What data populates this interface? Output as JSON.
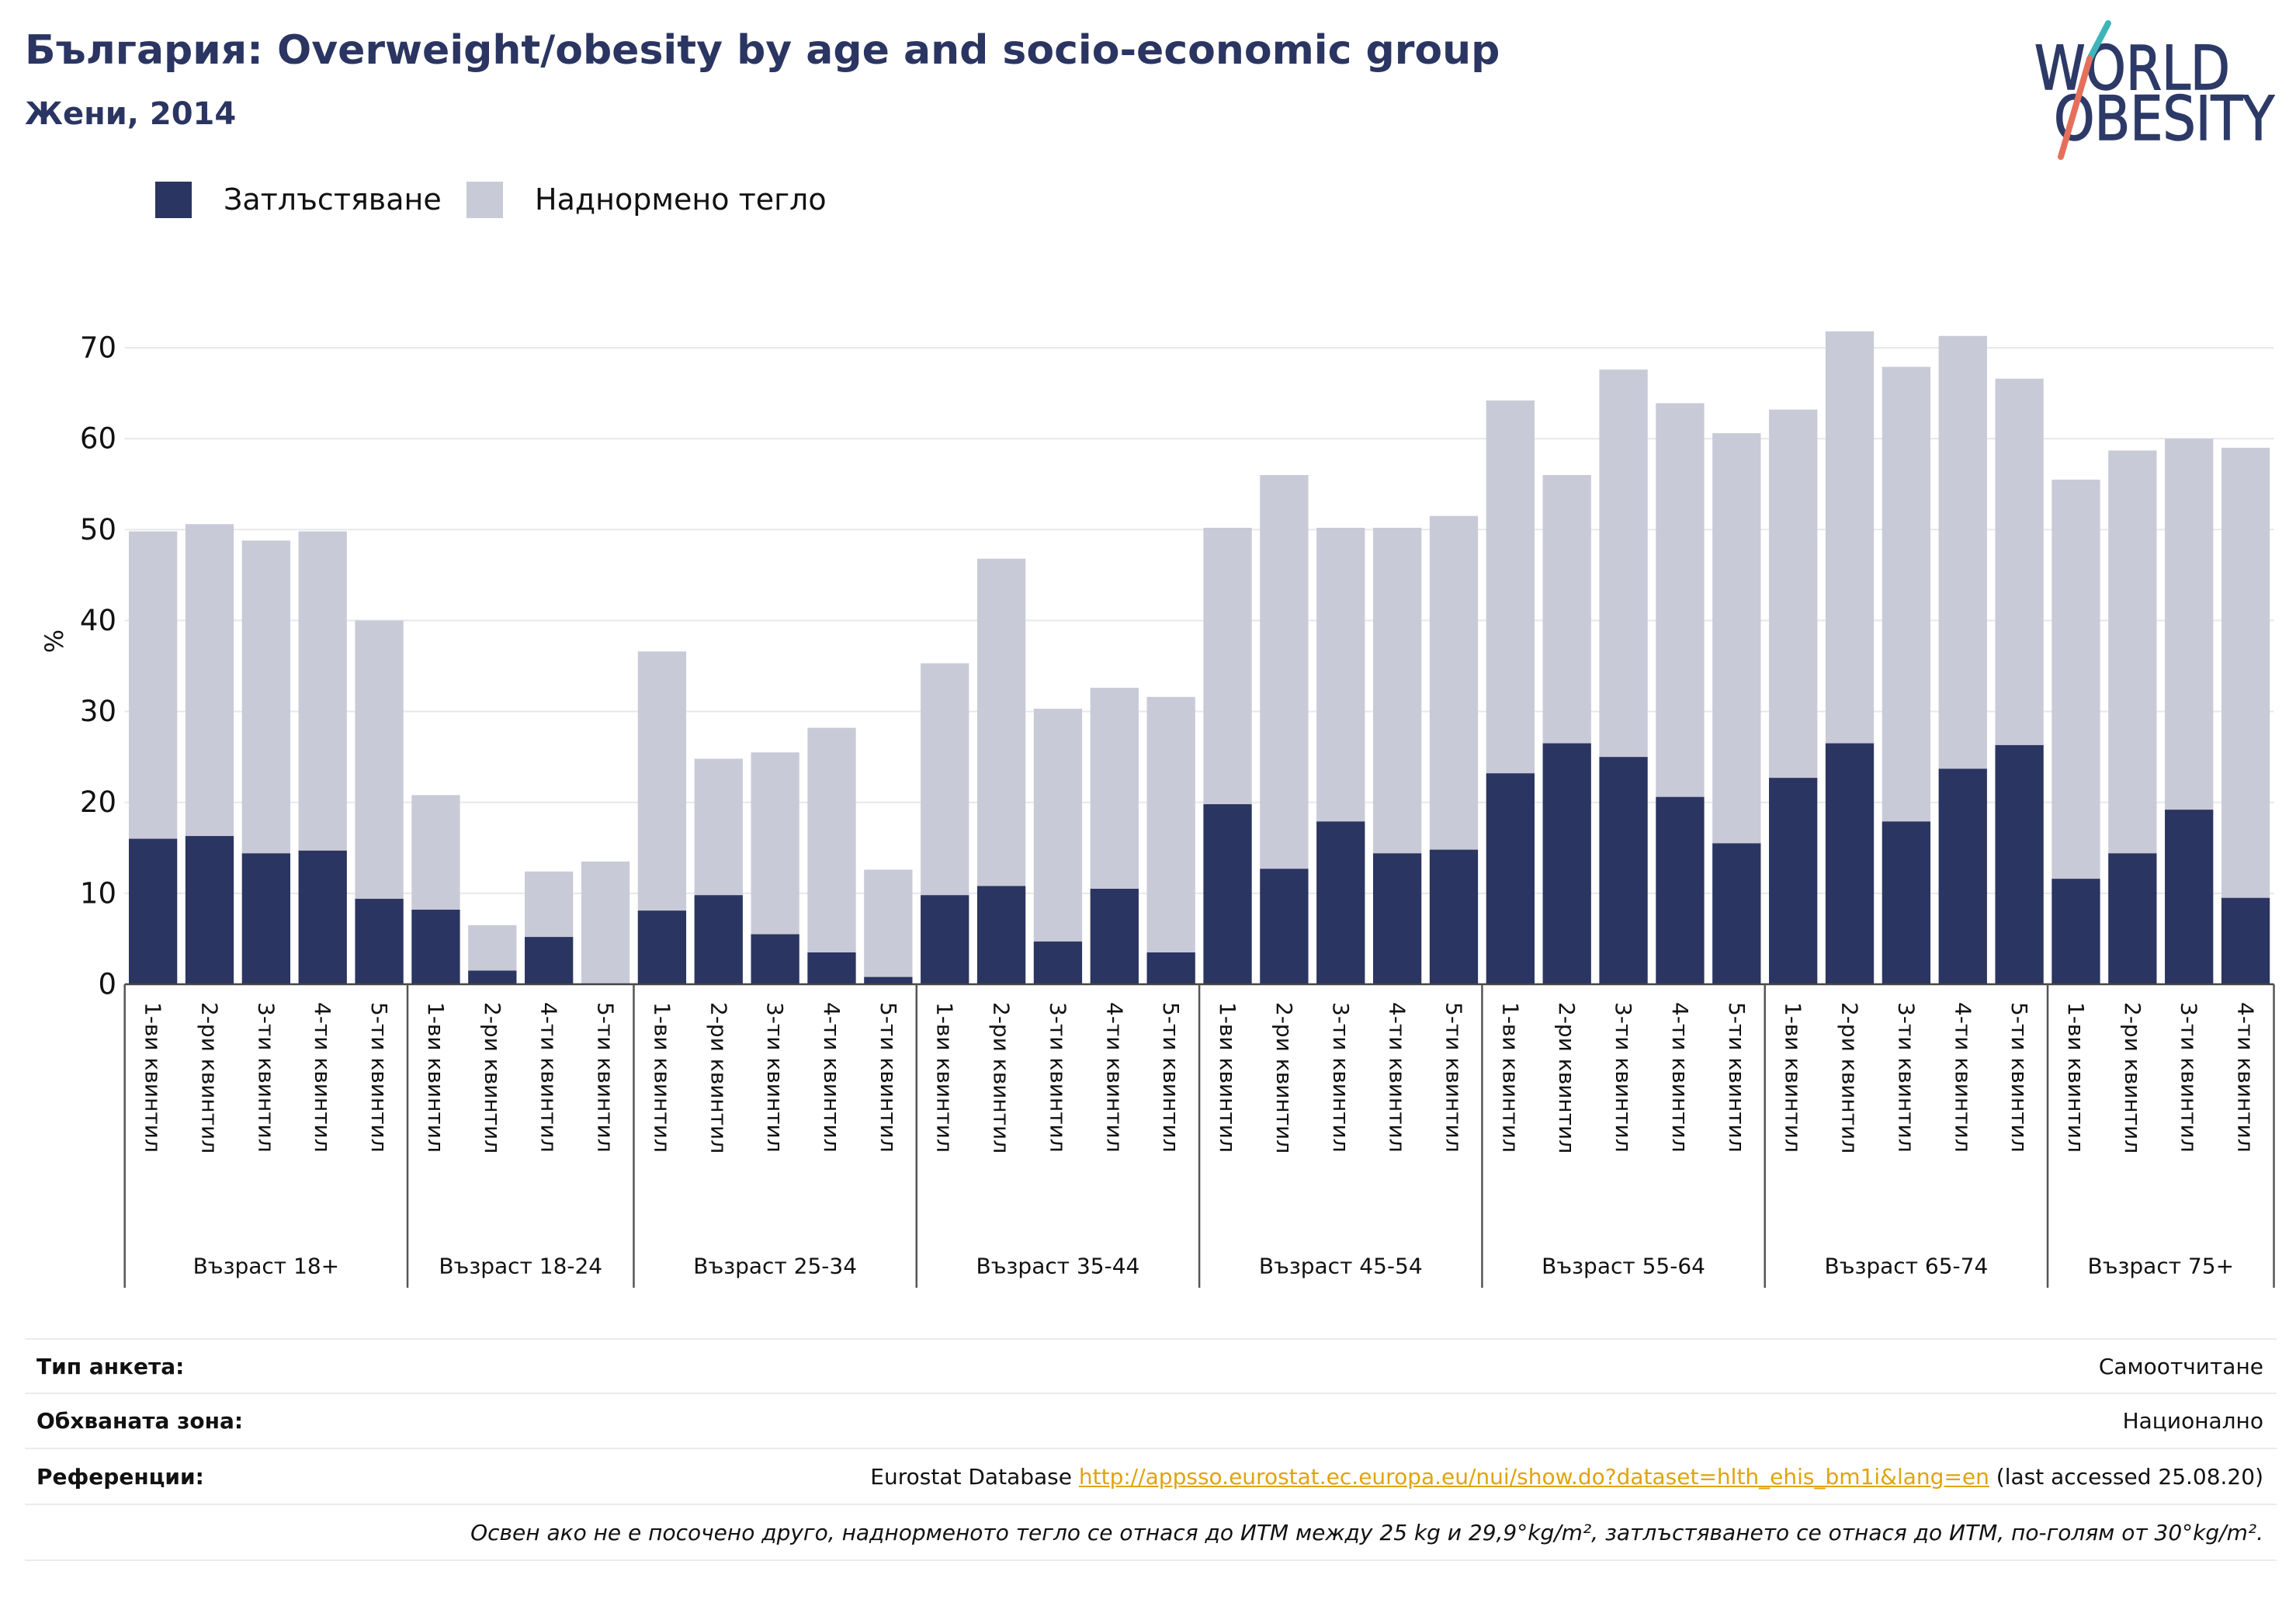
{
  "colors": {
    "title": "#2b3562",
    "text": "#111111",
    "link": "#e0a40b",
    "gridline": "#e7e8ec",
    "axis": "#444444",
    "logo_navy": "#2d3a67",
    "logo_teal": "#3db5b9",
    "logo_coral": "#e66f5c"
  },
  "logo": {
    "line1": "WORLD",
    "line2": "OBESITY"
  },
  "chart_data": {
    "type": "bar",
    "stacked": true,
    "title": "България: Overweight/obesity by age and socio-economic group",
    "subtitle": "Жени, 2014",
    "xlabel": "",
    "ylabel": "%",
    "ylim": [
      0,
      75
    ],
    "yticks": [
      0,
      10,
      20,
      30,
      40,
      50,
      60,
      70
    ],
    "grid": true,
    "legend": {
      "position": "top-left"
    },
    "groups": [
      {
        "label": "Възраст 18+",
        "categories": [
          "1-ви квинтил",
          "2-ри квинтил",
          "3-ти квинтил",
          "4-ти квинтил",
          "5-ти квинтил"
        ]
      },
      {
        "label": "Възраст 18-24",
        "categories": [
          "1-ви квинтил",
          "2-ри квинтил",
          "4-ти квинтил",
          "5-ти квинтил"
        ]
      },
      {
        "label": "Възраст 25-34",
        "categories": [
          "1-ви квинтил",
          "2-ри квинтил",
          "3-ти квинтил",
          "4-ти квинтил",
          "5-ти квинтил"
        ]
      },
      {
        "label": "Възраст 35-44",
        "categories": [
          "1-ви квинтил",
          "2-ри квинтил",
          "3-ти квинтил",
          "4-ти квинтил",
          "5-ти квинтил"
        ]
      },
      {
        "label": "Възраст 45-54",
        "categories": [
          "1-ви квинтил",
          "2-ри квинтил",
          "3-ти квинтил",
          "4-ти квинтил",
          "5-ти квинтил"
        ]
      },
      {
        "label": "Възраст 55-64",
        "categories": [
          "1-ви квинтил",
          "2-ри квинтил",
          "3-ти квинтил",
          "4-ти квинтил",
          "5-ти квинтил"
        ]
      },
      {
        "label": "Възраст 65-74",
        "categories": [
          "1-ви квинтил",
          "2-ри квинтил",
          "3-ти квинтил",
          "4-ти квинтил",
          "5-ти квинтил"
        ]
      },
      {
        "label": "Възраст 75+",
        "categories": [
          "1-ви квинтил",
          "2-ри квинтил",
          "3-ти квинтил",
          "4-ти квинтил"
        ]
      }
    ],
    "series": [
      {
        "name": "Затлъстяване",
        "color": "#2b3561",
        "values": [
          16.0,
          16.3,
          14.4,
          14.7,
          9.4,
          8.2,
          1.5,
          5.2,
          0.0,
          8.1,
          9.8,
          5.5,
          3.5,
          0.8,
          9.8,
          10.8,
          4.7,
          10.5,
          3.5,
          19.8,
          12.7,
          17.9,
          14.4,
          14.8,
          23.2,
          26.5,
          25.0,
          20.6,
          15.5,
          22.7,
          26.5,
          17.9,
          23.7,
          26.3,
          11.6,
          14.4,
          19.2,
          9.5
        ]
      },
      {
        "name": "Наднормено тегло",
        "color": "#c9cad7",
        "values": [
          33.8,
          34.3,
          34.4,
          35.1,
          30.6,
          12.6,
          5.0,
          7.2,
          13.5,
          28.5,
          15.0,
          20.0,
          24.7,
          11.8,
          25.5,
          36.0,
          25.6,
          22.1,
          28.1,
          30.4,
          43.3,
          32.3,
          35.8,
          36.7,
          41.0,
          29.5,
          42.6,
          43.3,
          45.1,
          40.5,
          45.3,
          50.0,
          47.6,
          40.3,
          43.9,
          44.3,
          40.8,
          49.5
        ]
      }
    ]
  },
  "footer": {
    "rows": [
      {
        "label": "Тип анкета:",
        "value": "Самоотчитане"
      },
      {
        "label": "Обхваната зона:",
        "value": "Национално"
      }
    ],
    "references": {
      "label": "Референции:",
      "source": "Eurostat Database",
      "link": "http://appsso.eurostat.ec.europa.eu/nui/show.do?dataset=hlth_ehis_bm1i&lang=en",
      "accessed": "(last accessed 25.08.20)"
    },
    "note": "Освен ако не е посочено друго, наднорменото тегло се отнася до ИТМ между 25 kg и 29,9°kg/m², затлъстяването се отнася до ИТМ, по-голям от 30°kg/m²."
  }
}
